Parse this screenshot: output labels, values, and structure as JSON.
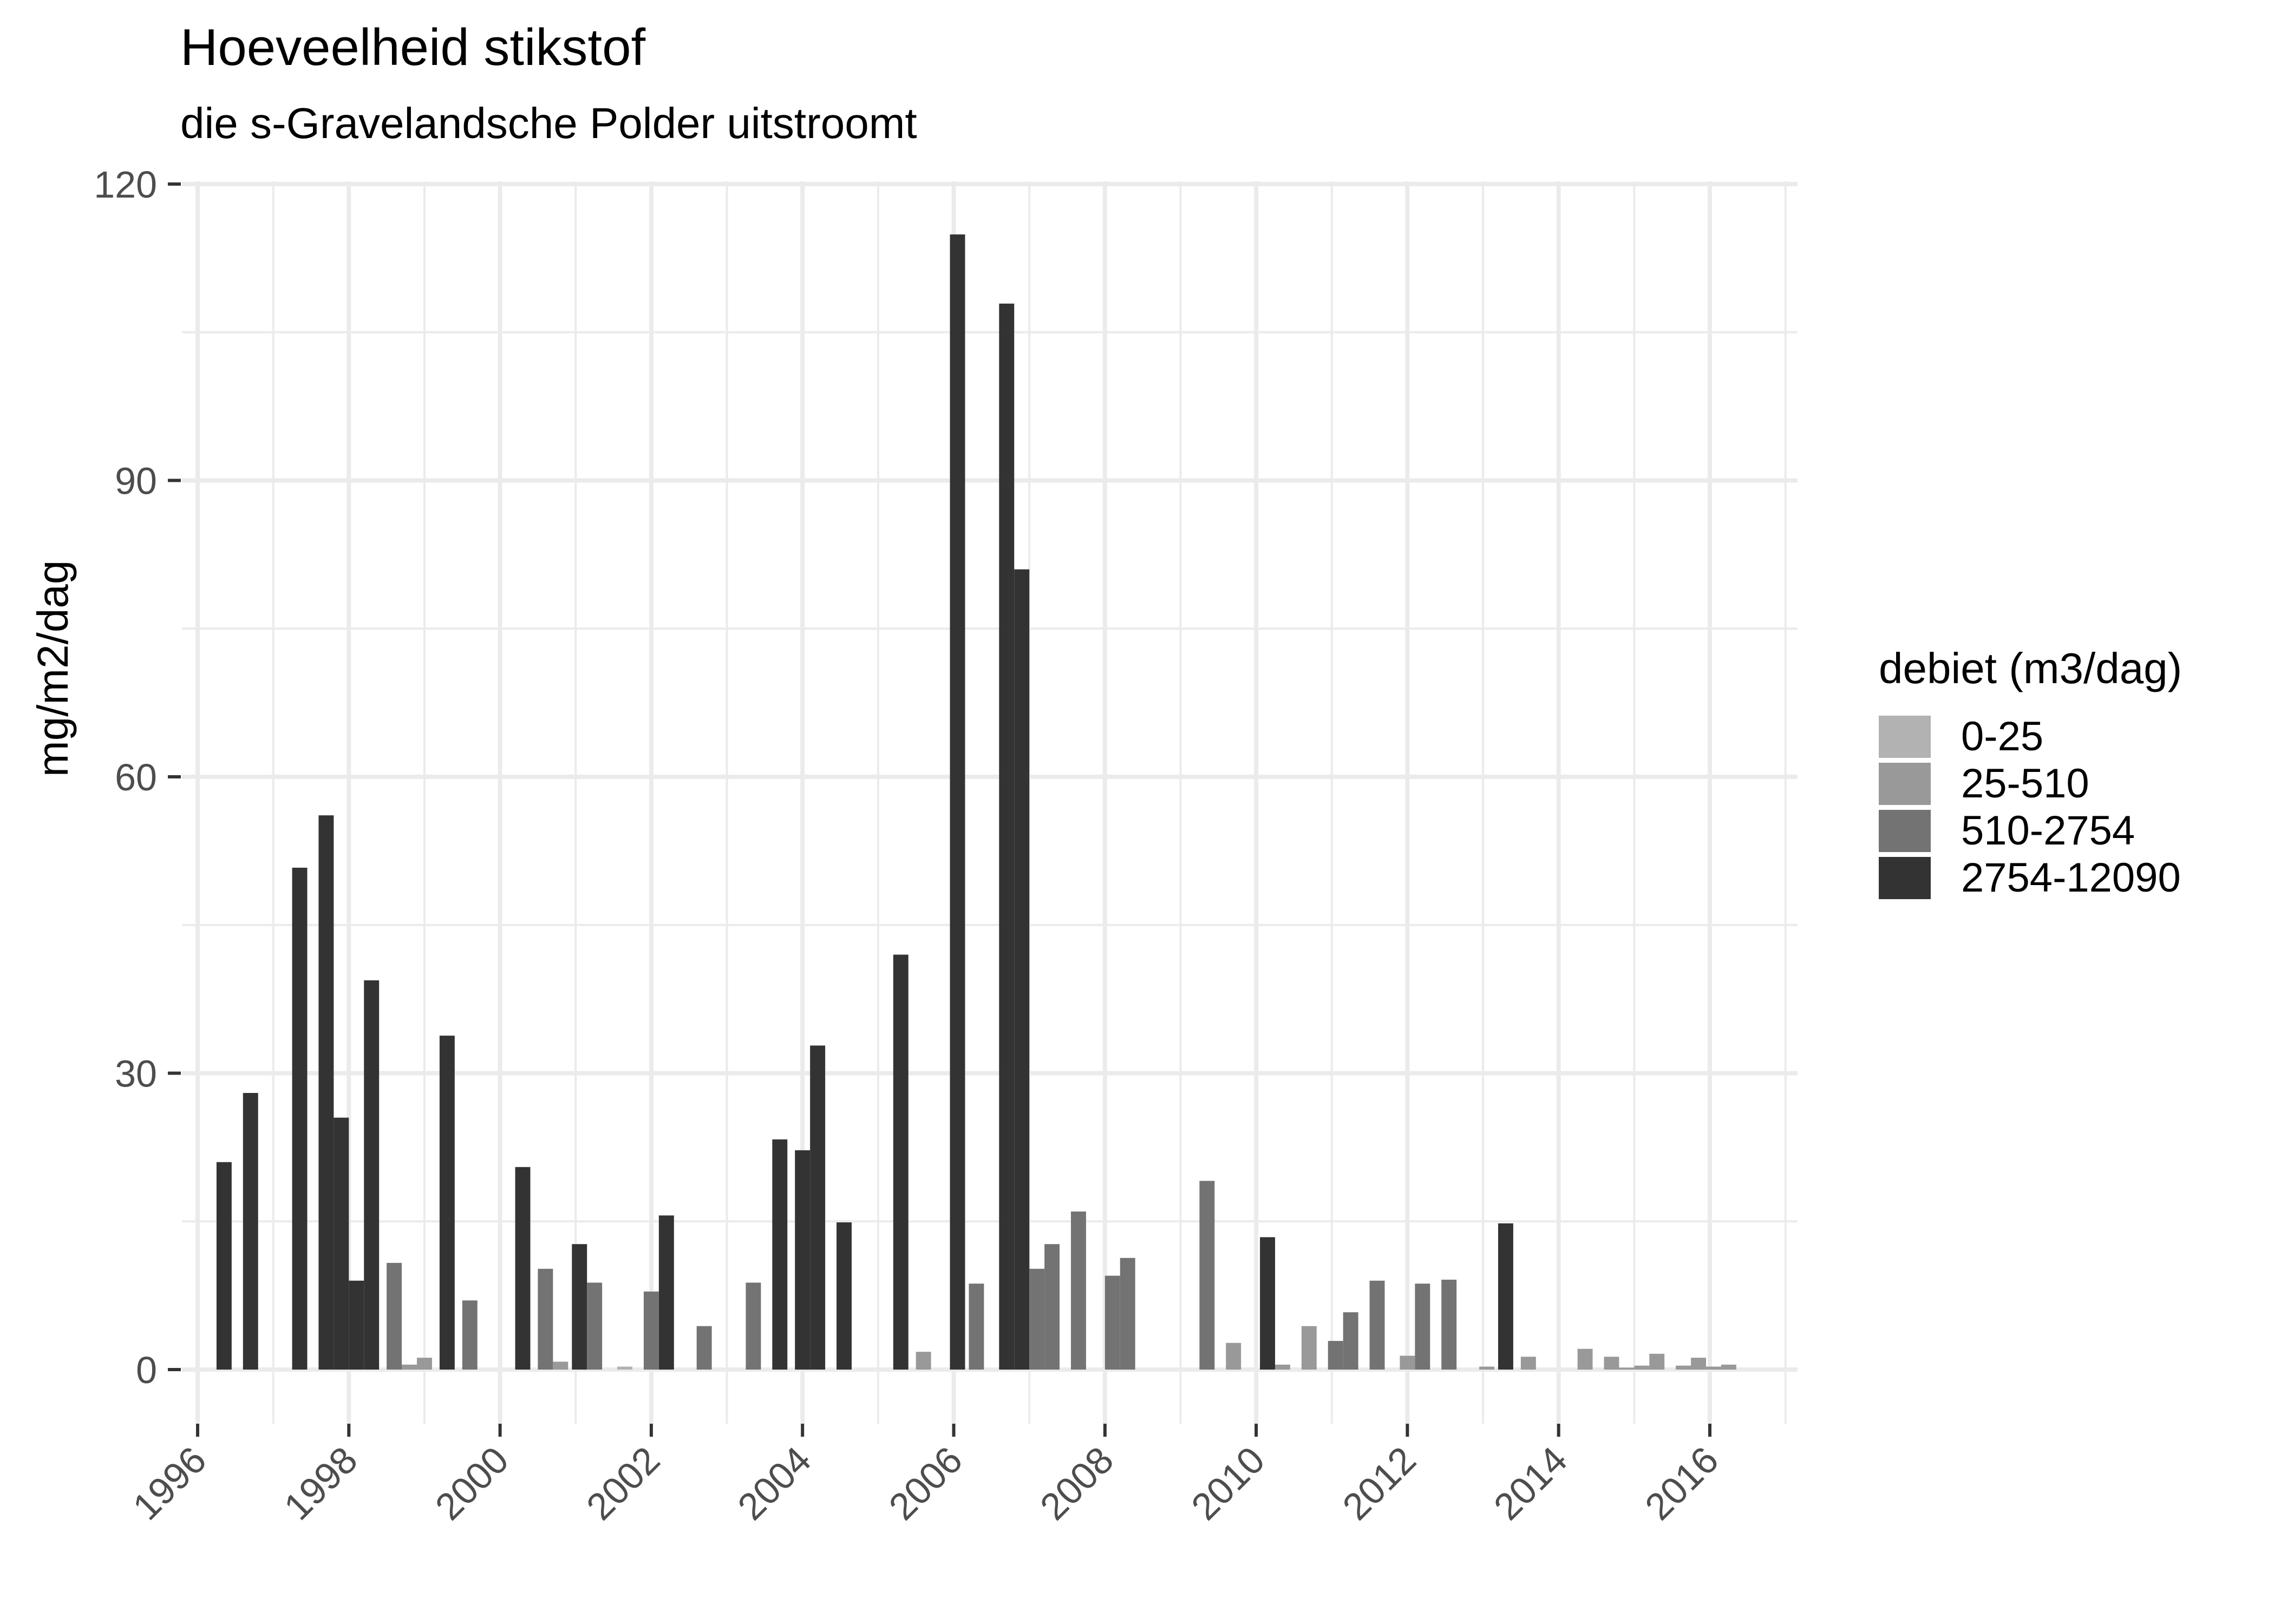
{
  "chart_data": {
    "type": "bar",
    "title": "Hoeveelheid stikstof",
    "subtitle": "die s-Gravelandsche Polder uitstroomt",
    "xlabel": "",
    "ylabel": "mg/m2/dag",
    "ylim": [
      0,
      120
    ],
    "xlim": [
      1996,
      2016.6
    ],
    "y_ticks": [
      0,
      30,
      60,
      90,
      120
    ],
    "x_ticks": [
      "1996",
      "1998",
      "2000",
      "2002",
      "2004",
      "2006",
      "2008",
      "2010",
      "2012",
      "2014",
      "2016"
    ],
    "grid": true,
    "legend_position": "right",
    "legend": {
      "title": "debiet (m3/dag)",
      "entries": [
        {
          "label": "0-25",
          "color": "#b2b2b2"
        },
        {
          "label": "25-510",
          "color": "#999999"
        },
        {
          "label": "510-2754",
          "color": "#737373"
        },
        {
          "label": "2754-12090",
          "color": "#333333"
        }
      ]
    },
    "bar_width_years": 0.2,
    "series": [
      {
        "name": "2754-12090",
        "points": [
          [
            1996.35,
            21.0
          ],
          [
            1996.7,
            28.0
          ],
          [
            1997.35,
            50.8
          ],
          [
            1997.7,
            56.1
          ],
          [
            1997.9,
            25.5
          ],
          [
            1998.1,
            9.0
          ],
          [
            1998.3,
            39.4
          ],
          [
            1999.3,
            33.8
          ],
          [
            2000.3,
            20.5
          ],
          [
            2001.05,
            12.7
          ],
          [
            2002.2,
            15.6
          ],
          [
            2003.7,
            23.3
          ],
          [
            2004.0,
            22.2
          ],
          [
            2004.2,
            32.8
          ],
          [
            2004.55,
            14.9
          ],
          [
            2005.3,
            42.0
          ],
          [
            2006.05,
            114.9
          ],
          [
            2006.7,
            107.9
          ],
          [
            2006.9,
            81.0
          ],
          [
            2010.15,
            13.4
          ],
          [
            2013.3,
            14.8
          ]
        ]
      },
      {
        "name": "510-2754",
        "points": [
          [
            1998.6,
            10.8
          ],
          [
            1999.6,
            7.0
          ],
          [
            2000.6,
            10.2
          ],
          [
            2001.25,
            8.8
          ],
          [
            2002.0,
            7.9
          ],
          [
            2002.7,
            4.4
          ],
          [
            2003.35,
            8.8
          ],
          [
            2006.3,
            8.7
          ],
          [
            2007.1,
            10.2
          ],
          [
            2007.3,
            12.7
          ],
          [
            2007.65,
            16.0
          ],
          [
            2008.1,
            9.5
          ],
          [
            2008.3,
            11.3
          ],
          [
            2009.35,
            19.1
          ],
          [
            2011.05,
            2.9
          ],
          [
            2011.25,
            5.8
          ],
          [
            2011.6,
            9.0
          ],
          [
            2012.2,
            8.7
          ],
          [
            2012.55,
            9.1
          ]
        ]
      },
      {
        "name": "25-510",
        "points": [
          [
            1998.8,
            0.5
          ],
          [
            1999.0,
            1.2
          ],
          [
            2000.8,
            0.8
          ],
          [
            2005.6,
            1.8
          ],
          [
            2009.7,
            2.7
          ],
          [
            2010.35,
            0.5
          ],
          [
            2010.7,
            4.4
          ],
          [
            2012.0,
            1.4
          ],
          [
            2013.05,
            0.3
          ],
          [
            2013.6,
            1.3
          ],
          [
            2014.35,
            2.1
          ],
          [
            2014.7,
            1.3
          ],
          [
            2014.9,
            0.2
          ],
          [
            2015.1,
            0.4
          ],
          [
            2015.3,
            1.6
          ],
          [
            2015.65,
            0.4
          ],
          [
            2015.85,
            1.2
          ],
          [
            2016.05,
            0.3
          ],
          [
            2016.25,
            0.5
          ]
        ]
      },
      {
        "name": "0-25",
        "points": [
          [
            2001.65,
            0.3
          ]
        ]
      }
    ]
  }
}
